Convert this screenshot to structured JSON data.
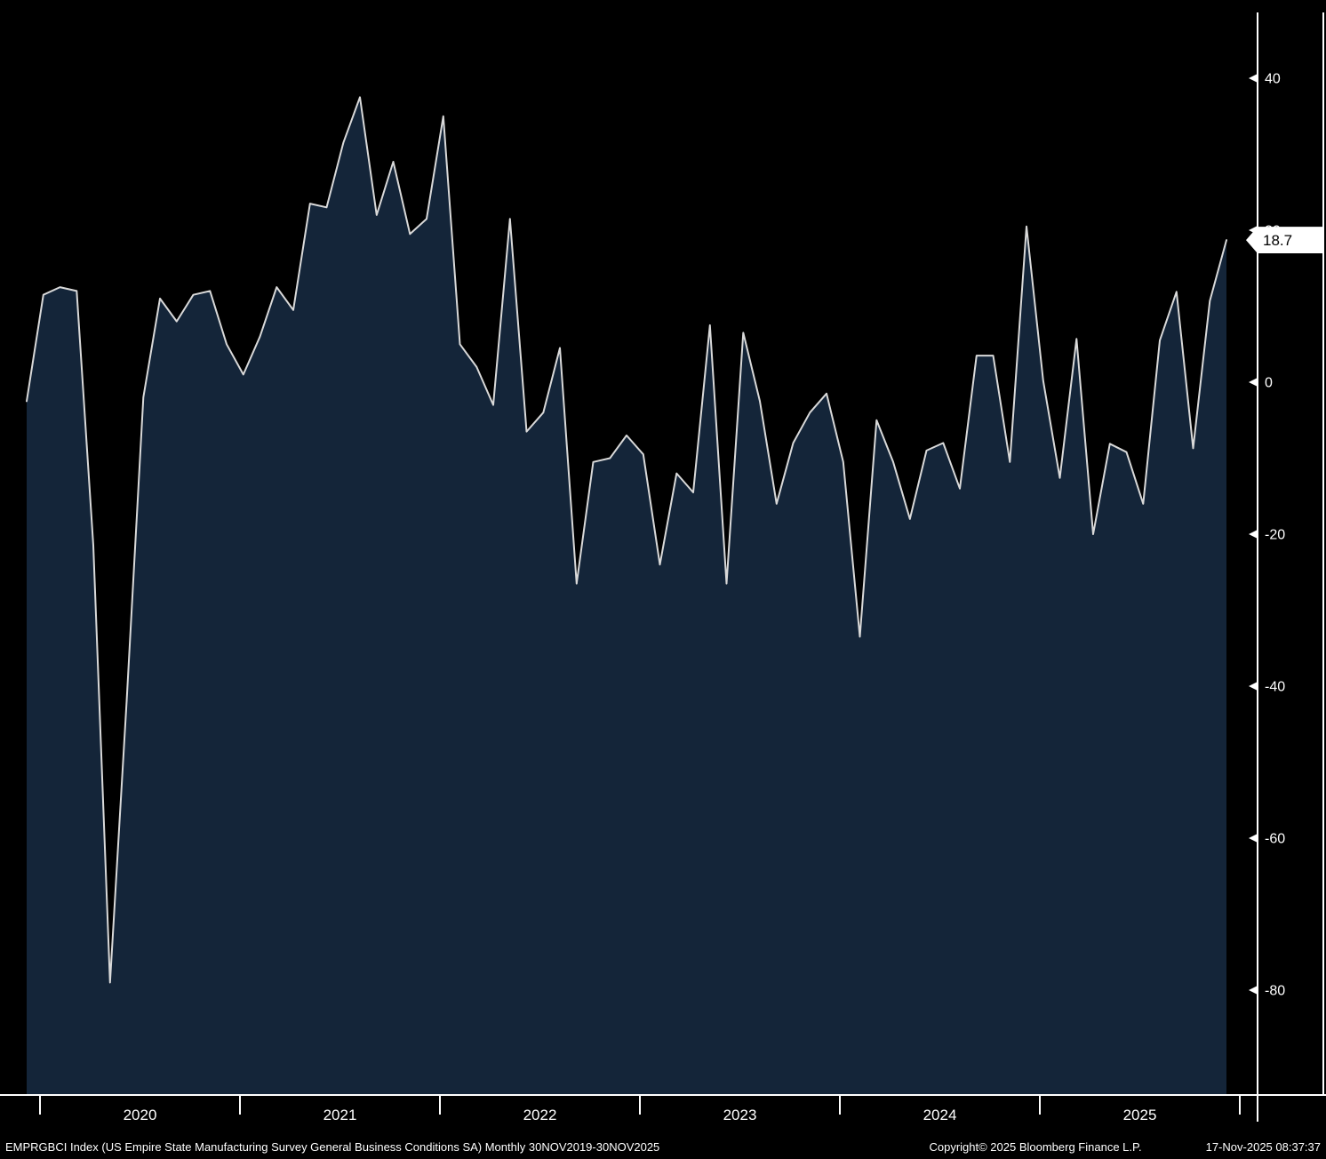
{
  "window": {
    "footer": {
      "left": "EMPRGBCI Index (US Empire State Manufacturing Survey General Business Conditions SA) Monthly 30NOV2019-30NOV2025",
      "center": "Copyright© 2025 Bloomberg Finance L.P.",
      "right": "17-Nov-2025 08:37:37"
    }
  },
  "chart_data": {
    "type": "area",
    "title": "",
    "series_name": "US Empire State Manufacturing Survey General Business Conditions SA",
    "x": [
      "2019-11",
      "2019-12",
      "2020-01",
      "2020-02",
      "2020-03",
      "2020-04",
      "2020-05",
      "2020-06",
      "2020-07",
      "2020-08",
      "2020-09",
      "2020-10",
      "2020-11",
      "2020-12",
      "2021-01",
      "2021-02",
      "2021-03",
      "2021-04",
      "2021-05",
      "2021-06",
      "2021-07",
      "2021-08",
      "2021-09",
      "2021-10",
      "2021-11",
      "2021-12",
      "2022-01",
      "2022-02",
      "2022-03",
      "2022-04",
      "2022-05",
      "2022-06",
      "2022-07",
      "2022-08",
      "2022-09",
      "2022-10",
      "2022-11",
      "2022-12",
      "2023-01",
      "2023-02",
      "2023-03",
      "2023-04",
      "2023-05",
      "2023-06",
      "2023-07",
      "2023-08",
      "2023-09",
      "2023-10",
      "2023-11",
      "2023-12",
      "2024-01",
      "2024-02",
      "2024-03",
      "2024-04",
      "2024-05",
      "2024-06",
      "2024-07",
      "2024-08",
      "2024-09",
      "2024-10",
      "2024-11",
      "2024-12",
      "2025-01",
      "2025-02",
      "2025-03",
      "2025-04",
      "2025-05",
      "2025-06",
      "2025-07",
      "2025-08",
      "2025-09",
      "2025-10",
      "2025-11"
    ],
    "values": [
      -2.5,
      11.5,
      12.5,
      12.0,
      -21.5,
      -79.0,
      -42.0,
      -2.0,
      11.0,
      8.0,
      11.5,
      12.0,
      5.0,
      1.0,
      6.0,
      12.5,
      9.5,
      23.5,
      23.0,
      31.5,
      37.5,
      22.0,
      29.0,
      19.5,
      21.5,
      35.0,
      5.0,
      2.0,
      -3.0,
      21.5,
      -6.5,
      -4.0,
      4.5,
      -26.5,
      -10.5,
      -10.0,
      -7.0,
      -9.5,
      -24.0,
      -12.0,
      -14.5,
      7.5,
      -26.5,
      6.5,
      -2.5,
      -16.0,
      -8.0,
      -4.0,
      -1.5,
      -10.5,
      -33.5,
      -5.0,
      -10.5,
      -18.0,
      -9.0,
      -8.0,
      -14.0,
      3.5,
      3.5,
      -10.5,
      20.5,
      0.2,
      -12.6,
      5.7,
      -20.0,
      -8.1,
      -9.2,
      -16.0,
      5.5,
      11.9,
      -8.7,
      10.7,
      18.7
    ],
    "last_value_label": "18.7",
    "y_ticks": [
      40,
      20,
      0,
      -20,
      -40,
      -60,
      -80
    ],
    "x_tick_labels": [
      "2020",
      "2021",
      "2022",
      "2023",
      "2024",
      "2025"
    ],
    "ylim": [
      -95,
      49
    ],
    "grid": false,
    "legend": "none",
    "colors": {
      "background": "#000000",
      "area_fill": "#142539",
      "line": "#d9d9d9",
      "axis": "#ffffff",
      "label_box_bg": "#ffffff",
      "label_box_text": "#000000"
    }
  }
}
